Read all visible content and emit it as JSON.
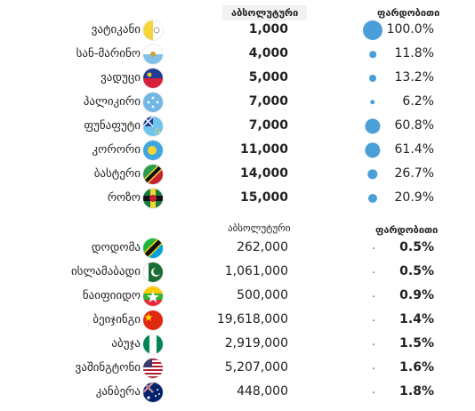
{
  "header1": {
    "absolute": "აბსოლუტური",
    "relative": "ფარდობითი"
  },
  "header2": {
    "absolute": "აბსოლუტური",
    "relative": "ფარდობითი"
  },
  "chart_data": [
    {
      "type": "table",
      "columns": [
        "",
        "აბსოლუტური",
        "ფარდობითი"
      ],
      "rows": [
        {
          "name": "ვატიკანი",
          "flag": "flag-vatican",
          "absolute": "1,000",
          "relative": "100.0%",
          "relative_value": 100.0
        },
        {
          "name": "სან-მარინო",
          "flag": "flag-san-marino",
          "absolute": "4,000",
          "relative": "11.8%",
          "relative_value": 11.8
        },
        {
          "name": "ვადუცი",
          "flag": "flag-liechtenstein",
          "absolute": "5,000",
          "relative": "13.2%",
          "relative_value": 13.2
        },
        {
          "name": "პალიკირი",
          "flag": "flag-micronesia",
          "absolute": "7,000",
          "relative": "6.2%",
          "relative_value": 6.2
        },
        {
          "name": "ფუნაფუტი",
          "flag": "flag-tuvalu",
          "absolute": "7,000",
          "relative": "60.8%",
          "relative_value": 60.8
        },
        {
          "name": "კორორი",
          "flag": "flag-palau",
          "absolute": "11,000",
          "relative": "61.4%",
          "relative_value": 61.4
        },
        {
          "name": "ბასტერი",
          "flag": "flag-saint-kitts",
          "absolute": "14,000",
          "relative": "26.7%",
          "relative_value": 26.7
        },
        {
          "name": "როზო",
          "flag": "flag-dominica",
          "absolute": "15,000",
          "relative": "20.9%",
          "relative_value": 20.9
        }
      ]
    },
    {
      "type": "table",
      "columns": [
        "",
        "აბსოლუტური",
        "ფარდობითი"
      ],
      "rows": [
        {
          "name": "დოდომა",
          "flag": "flag-tanzania",
          "absolute": "262,000",
          "relative": "0.5%",
          "relative_value": 0.5
        },
        {
          "name": "ისლამაბადი",
          "flag": "flag-pakistan",
          "absolute": "1,061,000",
          "relative": "0.5%",
          "relative_value": 0.5
        },
        {
          "name": "ნაიფიიდო",
          "flag": "flag-myanmar",
          "absolute": "500,000",
          "relative": "0.9%",
          "relative_value": 0.9
        },
        {
          "name": "ბეიჯინგი",
          "flag": "flag-china",
          "absolute": "19,618,000",
          "relative": "1.4%",
          "relative_value": 1.4
        },
        {
          "name": "აბუჯა",
          "flag": "flag-nigeria",
          "absolute": "2,919,000",
          "relative": "1.5%",
          "relative_value": 1.5
        },
        {
          "name": "ვაშინგტონი",
          "flag": "flag-usa",
          "absolute": "5,207,000",
          "relative": "1.6%",
          "relative_value": 1.6
        },
        {
          "name": "კანბერა",
          "flag": "flag-australia",
          "absolute": "448,000",
          "relative": "1.8%",
          "relative_value": 1.8
        }
      ]
    }
  ],
  "colors": {
    "bubble": "#4a9fd8"
  }
}
